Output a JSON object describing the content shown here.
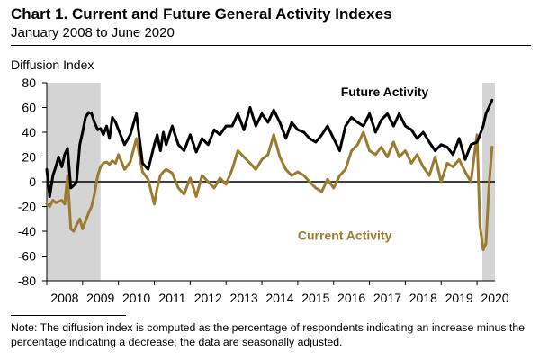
{
  "header": {
    "title": "Chart 1. Current and Future General Activity Indexes",
    "subtitle": "January 2008 to June 2020"
  },
  "note": "Note: The diffusion index is computed as the percentage of respondents indicating an increase minus the percentage indicating a decrease; the data are seasonally adjusted.",
  "chart_data": {
    "type": "line",
    "ylabel": "Diffusion Index",
    "ylim": [
      -80,
      80
    ],
    "yticks": [
      80,
      60,
      40,
      20,
      0,
      -20,
      -40,
      -60,
      -80
    ],
    "xlim": [
      2008.0,
      2020.5
    ],
    "xtick_labels": [
      "2008",
      "2009",
      "2010",
      "2011",
      "2012",
      "2013",
      "2014",
      "2015",
      "2016",
      "2017",
      "2018",
      "2019",
      "2020"
    ],
    "recessions": [
      [
        2008.0,
        2009.5
      ],
      [
        2020.15,
        2020.5
      ]
    ],
    "grid": false,
    "zero_line": true,
    "series": [
      {
        "name": "Future Activity",
        "color": "#000000",
        "x": [
          2008.0,
          2008.08,
          2008.17,
          2008.25,
          2008.33,
          2008.42,
          2008.5,
          2008.58,
          2008.67,
          2008.75,
          2008.83,
          2008.92,
          2009.0,
          2009.08,
          2009.17,
          2009.25,
          2009.33,
          2009.42,
          2009.5,
          2009.58,
          2009.67,
          2009.75,
          2009.83,
          2009.92,
          2010.0,
          2010.17,
          2010.33,
          2010.5,
          2010.67,
          2010.83,
          2011.0,
          2011.08,
          2011.17,
          2011.25,
          2011.33,
          2011.5,
          2011.67,
          2011.83,
          2012.0,
          2012.17,
          2012.33,
          2012.5,
          2012.67,
          2012.83,
          2013.0,
          2013.17,
          2013.33,
          2013.5,
          2013.67,
          2013.83,
          2014.0,
          2014.17,
          2014.33,
          2014.5,
          2014.67,
          2014.83,
          2015.0,
          2015.17,
          2015.33,
          2015.5,
          2015.67,
          2015.83,
          2016.0,
          2016.17,
          2016.33,
          2016.5,
          2016.67,
          2016.83,
          2017.0,
          2017.17,
          2017.33,
          2017.5,
          2017.67,
          2017.83,
          2018.0,
          2018.17,
          2018.33,
          2018.5,
          2018.67,
          2018.83,
          2019.0,
          2019.17,
          2019.33,
          2019.5,
          2019.67,
          2019.83,
          2020.0,
          2020.08,
          2020.17,
          2020.25,
          2020.33,
          2020.42
        ],
        "values": [
          10,
          -12,
          5,
          12,
          20,
          12,
          22,
          27,
          -5,
          -3,
          0,
          30,
          40,
          52,
          56,
          55,
          48,
          42,
          43,
          38,
          45,
          35,
          52,
          48,
          42,
          30,
          38,
          55,
          15,
          10,
          30,
          38,
          25,
          40,
          30,
          45,
          30,
          25,
          38,
          24,
          35,
          30,
          42,
          38,
          45,
          45,
          55,
          42,
          60,
          45,
          55,
          48,
          58,
          48,
          35,
          48,
          42,
          40,
          35,
          32,
          38,
          45,
          35,
          25,
          45,
          52,
          48,
          45,
          55,
          40,
          50,
          55,
          45,
          55,
          45,
          42,
          35,
          40,
          32,
          25,
          30,
          28,
          22,
          35,
          18,
          30,
          32,
          38,
          45,
          55,
          60,
          66
        ]
      },
      {
        "name": "Current Activity",
        "color": "#9c7a2e",
        "x": [
          2008.0,
          2008.08,
          2008.17,
          2008.25,
          2008.33,
          2008.42,
          2008.5,
          2008.58,
          2008.67,
          2008.75,
          2008.83,
          2008.92,
          2009.0,
          2009.08,
          2009.17,
          2009.25,
          2009.33,
          2009.42,
          2009.5,
          2009.58,
          2009.67,
          2009.75,
          2009.83,
          2009.92,
          2010.0,
          2010.17,
          2010.33,
          2010.5,
          2010.67,
          2010.83,
          2011.0,
          2011.08,
          2011.17,
          2011.25,
          2011.33,
          2011.5,
          2011.67,
          2011.83,
          2012.0,
          2012.17,
          2012.33,
          2012.5,
          2012.67,
          2012.83,
          2013.0,
          2013.17,
          2013.33,
          2013.5,
          2013.67,
          2013.83,
          2014.0,
          2014.17,
          2014.33,
          2014.5,
          2014.67,
          2014.83,
          2015.0,
          2015.17,
          2015.33,
          2015.5,
          2015.67,
          2015.83,
          2016.0,
          2016.17,
          2016.33,
          2016.5,
          2016.67,
          2016.83,
          2017.0,
          2017.17,
          2017.33,
          2017.5,
          2017.67,
          2017.83,
          2018.0,
          2018.17,
          2018.33,
          2018.5,
          2018.67,
          2018.83,
          2019.0,
          2019.17,
          2019.33,
          2019.5,
          2019.67,
          2019.83,
          2020.0,
          2020.08,
          2020.17,
          2020.25,
          2020.33,
          2020.42
        ],
        "values": [
          -18,
          -20,
          -15,
          -17,
          -16,
          -15,
          -18,
          5,
          -38,
          -40,
          -35,
          -30,
          -38,
          -32,
          -25,
          -20,
          -10,
          5,
          12,
          15,
          16,
          14,
          17,
          15,
          22,
          10,
          16,
          35,
          8,
          2,
          -18,
          -5,
          5,
          8,
          10,
          7,
          -5,
          -10,
          3,
          -12,
          5,
          0,
          -5,
          3,
          -2,
          10,
          25,
          20,
          15,
          10,
          18,
          22,
          38,
          20,
          10,
          5,
          8,
          5,
          0,
          -5,
          -8,
          2,
          -5,
          5,
          10,
          25,
          30,
          40,
          25,
          22,
          28,
          20,
          32,
          20,
          25,
          15,
          22,
          12,
          5,
          20,
          0,
          15,
          12,
          18,
          8,
          0,
          38,
          -35,
          -55,
          -50,
          -5,
          28
        ]
      }
    ],
    "series_labels": [
      {
        "text": "Future Activity",
        "x": 2016.2,
        "y": 69
      },
      {
        "text": "Current Activity",
        "x": 2015.0,
        "y": -47
      }
    ]
  }
}
